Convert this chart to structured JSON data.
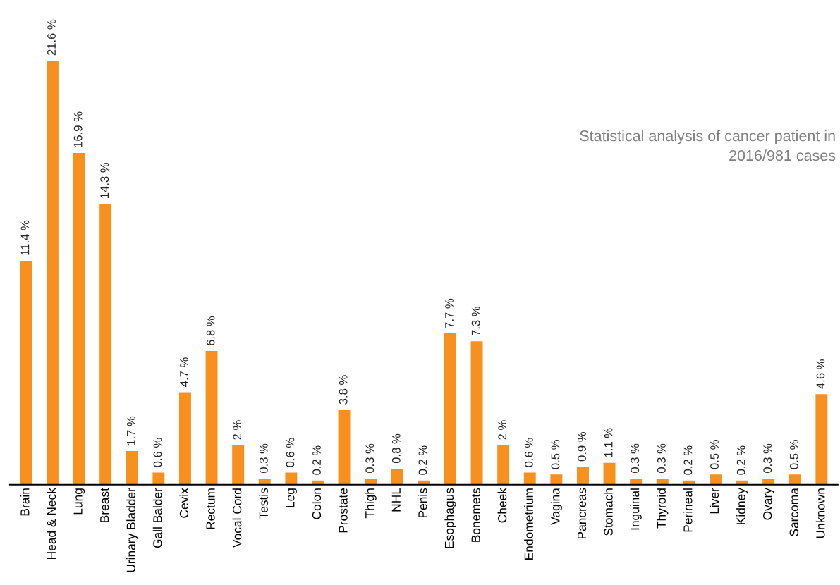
{
  "chart_data": {
    "type": "bar",
    "title": "Statistical analysis of cancer patient in\n2016/981 cases",
    "categories": [
      "Brain",
      "Head & Neck",
      "Lung",
      "Breast",
      "Urinary Bladder",
      "Gall Balder",
      "Cevix",
      "Rectum",
      "Vocal Cord",
      "Testis",
      "Leg",
      "Colon",
      "Prostate",
      "Thigh",
      "NHL",
      "Penis",
      "Esophagus",
      "Bonemets",
      "Cheek",
      "Endometrium",
      "Vagina",
      "Pancreas",
      "Stomach",
      "Inguinal",
      "Thyroid",
      "Perineal",
      "Liver",
      "Kidney",
      "Ovary",
      "Sarcoma",
      "Unknown"
    ],
    "values": [
      11.4,
      21.6,
      16.9,
      14.3,
      1.7,
      0.6,
      4.7,
      6.8,
      2,
      0.3,
      0.6,
      0.2,
      3.8,
      0.3,
      0.8,
      0.2,
      7.7,
      7.3,
      2,
      0.6,
      0.5,
      0.9,
      1.1,
      0.3,
      0.3,
      0.2,
      0.5,
      0.2,
      0.3,
      0.5,
      4.6
    ],
    "value_labels": [
      "11.4 %",
      "21.6 %",
      "16.9 %",
      "14.3 %",
      "1.7 %",
      "0.6 %",
      "4.7 %",
      "6.8 %",
      "2 %",
      "0.3 %",
      "0.6 %",
      "0.2 %",
      "3.8 %",
      "0.3 %",
      "0.8 %",
      "0.2 %",
      "7.7 %",
      "7.3 %",
      "2 %",
      "0.6 %",
      "0.5 %",
      "0.9 %",
      "1.1 %",
      "0.3 %",
      "0.3 %",
      "0.2 %",
      "0.5 %",
      "0.2 %",
      "0.3 %",
      "0.5 %",
      "4.6 %"
    ],
    "color": "#f7901e",
    "tick_labels": "x",
    "grid": false
  }
}
